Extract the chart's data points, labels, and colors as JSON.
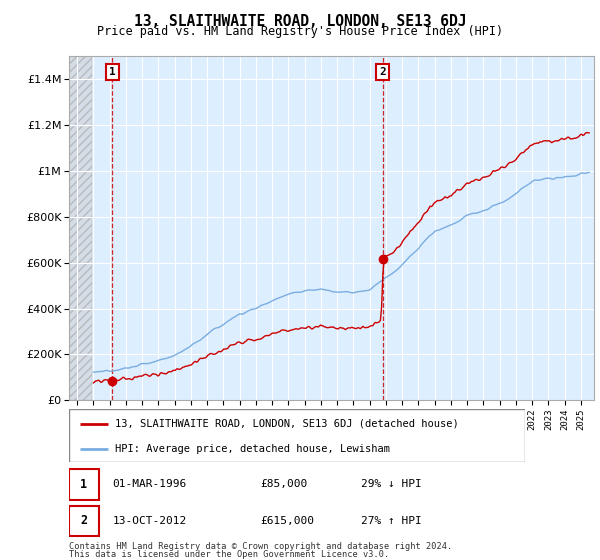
{
  "title": "13, SLAITHWAITE ROAD, LONDON, SE13 6DJ",
  "subtitle": "Price paid vs. HM Land Registry's House Price Index (HPI)",
  "legend_line1": "13, SLAITHWAITE ROAD, LONDON, SE13 6DJ (detached house)",
  "legend_line2": "HPI: Average price, detached house, Lewisham",
  "annotation1_date": "01-MAR-1996",
  "annotation1_price": "£85,000",
  "annotation1_hpi": "29% ↓ HPI",
  "annotation2_date": "13-OCT-2012",
  "annotation2_price": "£615,000",
  "annotation2_hpi": "27% ↑ HPI",
  "footnote1": "Contains HM Land Registry data © Crown copyright and database right 2024.",
  "footnote2": "This data is licensed under the Open Government Licence v3.0.",
  "sale1_x": 1996.17,
  "sale1_y": 85000,
  "sale2_x": 2012.79,
  "sale2_y": 615000,
  "red_color": "#cc0000",
  "blue_color": "#7aade0",
  "background_plot": "#ddeeff",
  "ylim": [
    0,
    1500000
  ],
  "xlim_start": 1993.5,
  "xlim_end": 2025.8
}
